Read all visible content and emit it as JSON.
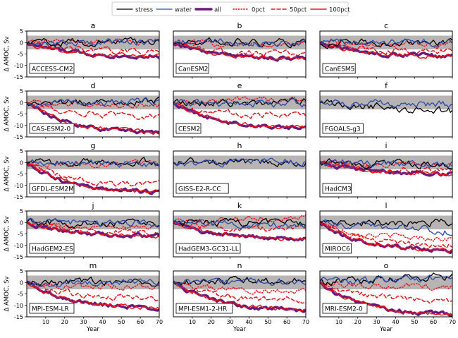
{
  "chart_data": {
    "type": "line",
    "xlabel": "Year",
    "ylabel": "Δ AMOC, Sv",
    "xlim": [
      0,
      70
    ],
    "ylim": [
      -15,
      5
    ],
    "xticks": [
      10,
      20,
      30,
      40,
      50,
      60,
      70
    ],
    "yticks": [
      5,
      0,
      -5,
      -10,
      -15
    ],
    "shaded_band": [
      -3,
      3
    ],
    "legend": [
      {
        "name": "stress",
        "color": "#000000",
        "style": "solid"
      },
      {
        "name": "water",
        "color": "#2a4aa8",
        "style": "solid"
      },
      {
        "name": "all",
        "color": "#6a1b7a",
        "style": "thick"
      },
      {
        "name": "0pct",
        "color": "#e8141b",
        "style": "dotted"
      },
      {
        "name": "50pct",
        "color": "#e8141b",
        "style": "dashed"
      },
      {
        "name": "100pct",
        "color": "#e8141b",
        "style": "solid"
      }
    ],
    "panels": [
      {
        "letter": "a",
        "model": "ACCESS-CM2",
        "series": {
          "stress": 0.5,
          "water": 0.5,
          "all": -6,
          "0pct": 0.5,
          "50pct": -4,
          "100pct": -6
        }
      },
      {
        "letter": "b",
        "model": "CanESM2",
        "series": {
          "stress": 0,
          "water": 0,
          "all": -7,
          "0pct": -1,
          "50pct": -5,
          "100pct": -7
        }
      },
      {
        "letter": "c",
        "model": "CanESM5",
        "series": {
          "stress": 0,
          "water": -0.5,
          "all": -6,
          "0pct": -1,
          "50pct": -4,
          "100pct": -6
        }
      },
      {
        "letter": "d",
        "model": "CAS-ESM2-0",
        "series": {
          "stress": 0.5,
          "water": 0.5,
          "all": -13,
          "0pct": -1,
          "50pct": -6,
          "100pct": -13
        }
      },
      {
        "letter": "e",
        "model": "CESM2",
        "series": {
          "stress": 0,
          "water": -0.5,
          "all": -11,
          "0pct": 1,
          "50pct": -6,
          "100pct": -11
        }
      },
      {
        "letter": "f",
        "model": "FGOALS-g3",
        "series": {
          "stress": -4,
          "water": -1
        }
      },
      {
        "letter": "g",
        "model": "GFDL-ESM2M",
        "series": {
          "stress": 0.5,
          "water": -1,
          "all": -13,
          "0pct": -1,
          "50pct": -10,
          "100pct": -13
        }
      },
      {
        "letter": "h",
        "model": "GISS-E2-R-CC",
        "series": {
          "stress": 0.5,
          "water": 0.5
        }
      },
      {
        "letter": "i",
        "model": "HadCM3",
        "series": {
          "stress": -1,
          "water": -1,
          "all": -5,
          "0pct": -1,
          "50pct": -3,
          "100pct": -5
        }
      },
      {
        "letter": "j",
        "model": "HadGEM2-ES",
        "series": {
          "stress": -1,
          "water": 0,
          "all": -6,
          "0pct": -2,
          "50pct": -5,
          "100pct": -6
        }
      },
      {
        "letter": "k",
        "model": "HadGEM3-GC31-LL",
        "series": {
          "stress": 0,
          "water": -1,
          "all": -7,
          "0pct": 2,
          "50pct": -3,
          "100pct": -7
        }
      },
      {
        "letter": "l",
        "model": "MIROC6",
        "series": {
          "stress": 0,
          "water": -4,
          "all": -12,
          "0pct": -7,
          "50pct": -10,
          "100pct": -12
        }
      },
      {
        "letter": "m",
        "model": "MPI-ESM-LR",
        "series": {
          "stress": 0,
          "water": 0,
          "all": -11,
          "0pct": -2,
          "50pct": -7,
          "100pct": -11
        }
      },
      {
        "letter": "n",
        "model": "MPI-ESM1-2-HR",
        "series": {
          "stress": 1,
          "water": 0,
          "all": -12,
          "0pct": -4,
          "50pct": -8,
          "100pct": -12
        }
      },
      {
        "letter": "o",
        "model": "MRI-ESM2-0",
        "series": {
          "stress": 3,
          "water": 2,
          "all": -14,
          "0pct": -2,
          "50pct": -8,
          "100pct": -14
        }
      }
    ]
  }
}
